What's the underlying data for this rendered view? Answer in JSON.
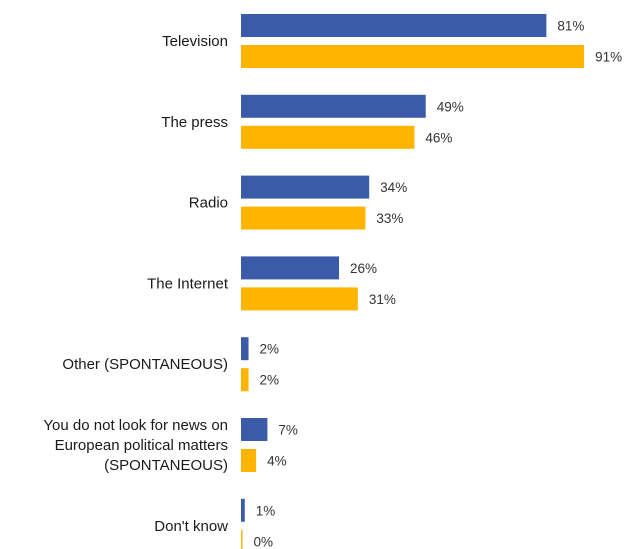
{
  "chart_data": {
    "type": "bar",
    "orientation": "horizontal",
    "title": "",
    "xlabel": "",
    "ylabel": "",
    "grid": false,
    "legend": "none",
    "value_suffix": "%",
    "xlim": [
      0,
      100
    ],
    "categories": [
      "Television",
      "The press",
      "Radio",
      "The Internet",
      "Other (SPONTANEOUS)",
      "You do not look for news on European political matters (SPONTANEOUS)",
      "Don't know"
    ],
    "category_lines": [
      [
        "Television"
      ],
      [
        "The press"
      ],
      [
        "Radio"
      ],
      [
        "The Internet"
      ],
      [
        "Other (SPONTANEOUS)"
      ],
      [
        "You do not look for news on",
        "European political matters",
        "(SPONTANEOUS)"
      ],
      [
        "Don't know"
      ]
    ],
    "series": [
      {
        "color": "#3a5ba8",
        "values": [
          81,
          49,
          34,
          26,
          2,
          7,
          1
        ]
      },
      {
        "color": "#ffb400",
        "values": [
          91,
          46,
          33,
          31,
          2,
          4,
          0
        ]
      }
    ]
  }
}
